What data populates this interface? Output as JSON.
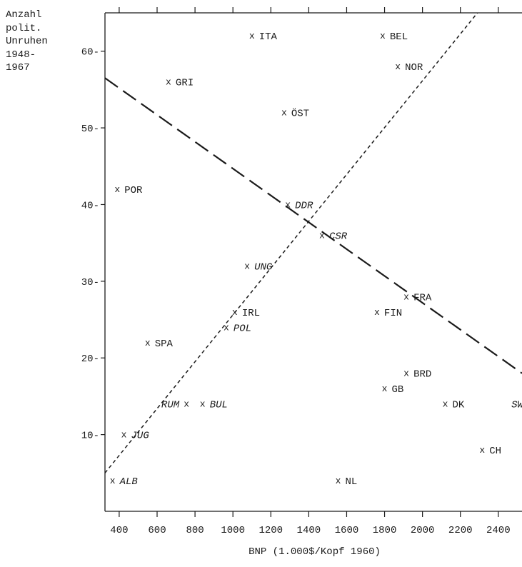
{
  "chart_data": {
    "type": "scatter",
    "ylabel_lines": [
      "Anzahl",
      "polit.",
      "Unruhen",
      "1948-",
      "1967"
    ],
    "xlabel": "BNP (1.000$/Kopf 1960)",
    "xlim": [
      325,
      2525
    ],
    "ylim": [
      0,
      65
    ],
    "x_ticks": [
      400,
      600,
      800,
      1000,
      1200,
      1400,
      1600,
      1800,
      2000,
      2200,
      2400
    ],
    "y_ticks": [
      10,
      20,
      30,
      40,
      50,
      60
    ],
    "points": [
      {
        "label": "ITA",
        "x": 1100,
        "y": 62,
        "italic": false,
        "label_side": "right"
      },
      {
        "label": "BEL",
        "x": 1790,
        "y": 62,
        "italic": false,
        "label_side": "right"
      },
      {
        "label": "NOR",
        "x": 1870,
        "y": 58,
        "italic": false,
        "label_side": "right"
      },
      {
        "label": "GRI",
        "x": 660,
        "y": 56,
        "italic": false,
        "label_side": "right"
      },
      {
        "label": "ÖST",
        "x": 1270,
        "y": 52,
        "italic": false,
        "label_side": "right"
      },
      {
        "label": "POR",
        "x": 390,
        "y": 42,
        "italic": false,
        "label_side": "right"
      },
      {
        "label": "DDR",
        "x": 1290,
        "y": 40,
        "italic": true,
        "label_side": "right"
      },
      {
        "label": "CSR",
        "x": 1470,
        "y": 36,
        "italic": true,
        "label_side": "right"
      },
      {
        "label": "UNG",
        "x": 1075,
        "y": 32,
        "italic": true,
        "label_side": "right"
      },
      {
        "label": "FRA",
        "x": 1915,
        "y": 28,
        "italic": false,
        "label_side": "right"
      },
      {
        "label": "IRL",
        "x": 1010,
        "y": 26,
        "italic": false,
        "label_side": "right"
      },
      {
        "label": "FIN",
        "x": 1760,
        "y": 26,
        "italic": false,
        "label_side": "right"
      },
      {
        "label": "POL",
        "x": 965,
        "y": 24,
        "italic": true,
        "label_side": "right"
      },
      {
        "label": "SPA",
        "x": 550,
        "y": 22,
        "italic": false,
        "label_side": "right"
      },
      {
        "label": "BRD",
        "x": 1915,
        "y": 18,
        "italic": false,
        "label_side": "right"
      },
      {
        "label": "GB",
        "x": 1800,
        "y": 16,
        "italic": false,
        "label_side": "right"
      },
      {
        "label": "RUM",
        "x": 755,
        "y": 14,
        "italic": true,
        "label_side": "left"
      },
      {
        "label": "BUL",
        "x": 840,
        "y": 14,
        "italic": true,
        "label_side": "right"
      },
      {
        "label": "DK",
        "x": 2120,
        "y": 14,
        "italic": false,
        "label_side": "right"
      },
      {
        "label": "SW",
        "x": 2570,
        "y": 14,
        "italic": true,
        "label_side": "left"
      },
      {
        "label": "JUG",
        "x": 425,
        "y": 10,
        "italic": true,
        "label_side": "right"
      },
      {
        "label": "CH",
        "x": 2315,
        "y": 8,
        "italic": false,
        "label_side": "right"
      },
      {
        "label": "ALB",
        "x": 365,
        "y": 4,
        "italic": true,
        "label_side": "right"
      },
      {
        "label": "NL",
        "x": 1555,
        "y": 4,
        "italic": false,
        "label_side": "right"
      }
    ],
    "lines": [
      {
        "style": "long-dash",
        "from": [
          325,
          56.5
        ],
        "to": [
          2525,
          18
        ]
      },
      {
        "style": "short-dash",
        "from": [
          325,
          5
        ],
        "to": [
          2290,
          65
        ]
      }
    ],
    "grid": false,
    "legend": false
  }
}
